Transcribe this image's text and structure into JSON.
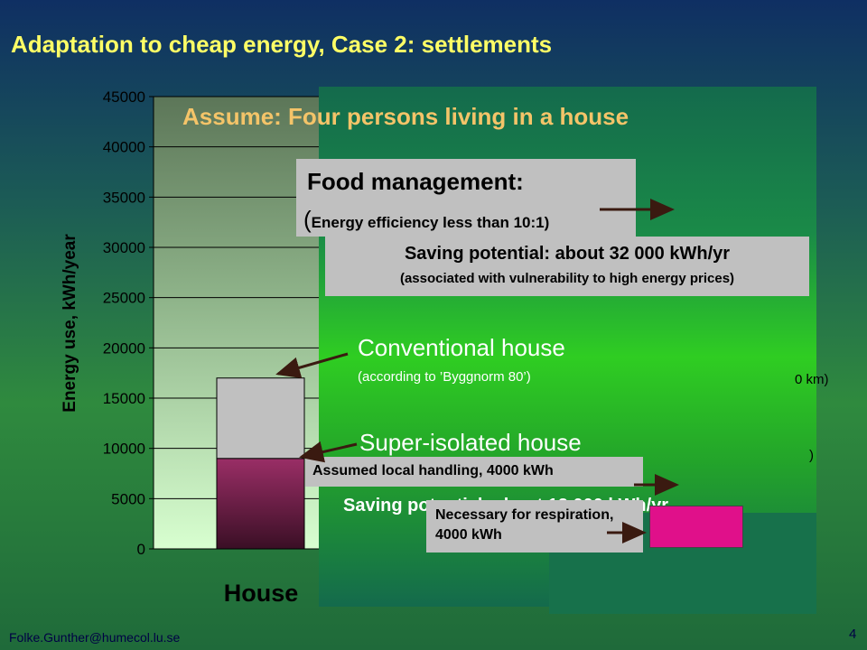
{
  "slide": {
    "title": "Adaptation to cheap energy, Case 2: settlements",
    "footer_email": "Folke.Gunther@humecol.lu.se",
    "page_number": "4"
  },
  "chart_data": {
    "type": "bar",
    "stacked": true,
    "categories": [
      "House"
    ],
    "series": [
      {
        "values": [
          9000
        ],
        "color": "#7a1e4a"
      },
      {
        "values": [
          8000
        ],
        "color": "#c0c0c0"
      }
    ],
    "ylabel": "Energy use, kWh/year",
    "xlabel": "House",
    "ylim": [
      0,
      45000
    ],
    "yticks": [
      "0",
      "5000",
      "10000",
      "15000",
      "20000",
      "25000",
      "30000",
      "35000",
      "40000",
      "45000"
    ],
    "grid": true
  },
  "overlay": {
    "assume": "Assume: Four persons living in a house",
    "food_title": "Food management:",
    "food_sub_open": "(",
    "food_sub_text": "Energy efficiency less than 10:1",
    "food_sub_close": ")",
    "saving1_main": "Saving potential: about 32 000 kWh/yr",
    "saving1_sub": "(associated with vulnerability to high energy prices)",
    "conventional_label": "Conventional house",
    "conventional_sub": "(according to ’Byggnorm 80’)",
    "km_fragment": "0 km)",
    "paren_fragment": ")",
    "super_label": "Super-isolated house",
    "local_handling": "Assumed local handling, 4000 kWh",
    "saving2": "Saving potential: about 12 000 kWh/yr",
    "respiration": "Necessary for respiration, 4000 kWh"
  },
  "colors": {
    "title": "#ffff66",
    "assume": "#f4c469",
    "arrow": "#3a1a10",
    "pink_bar": "#e0108a"
  }
}
